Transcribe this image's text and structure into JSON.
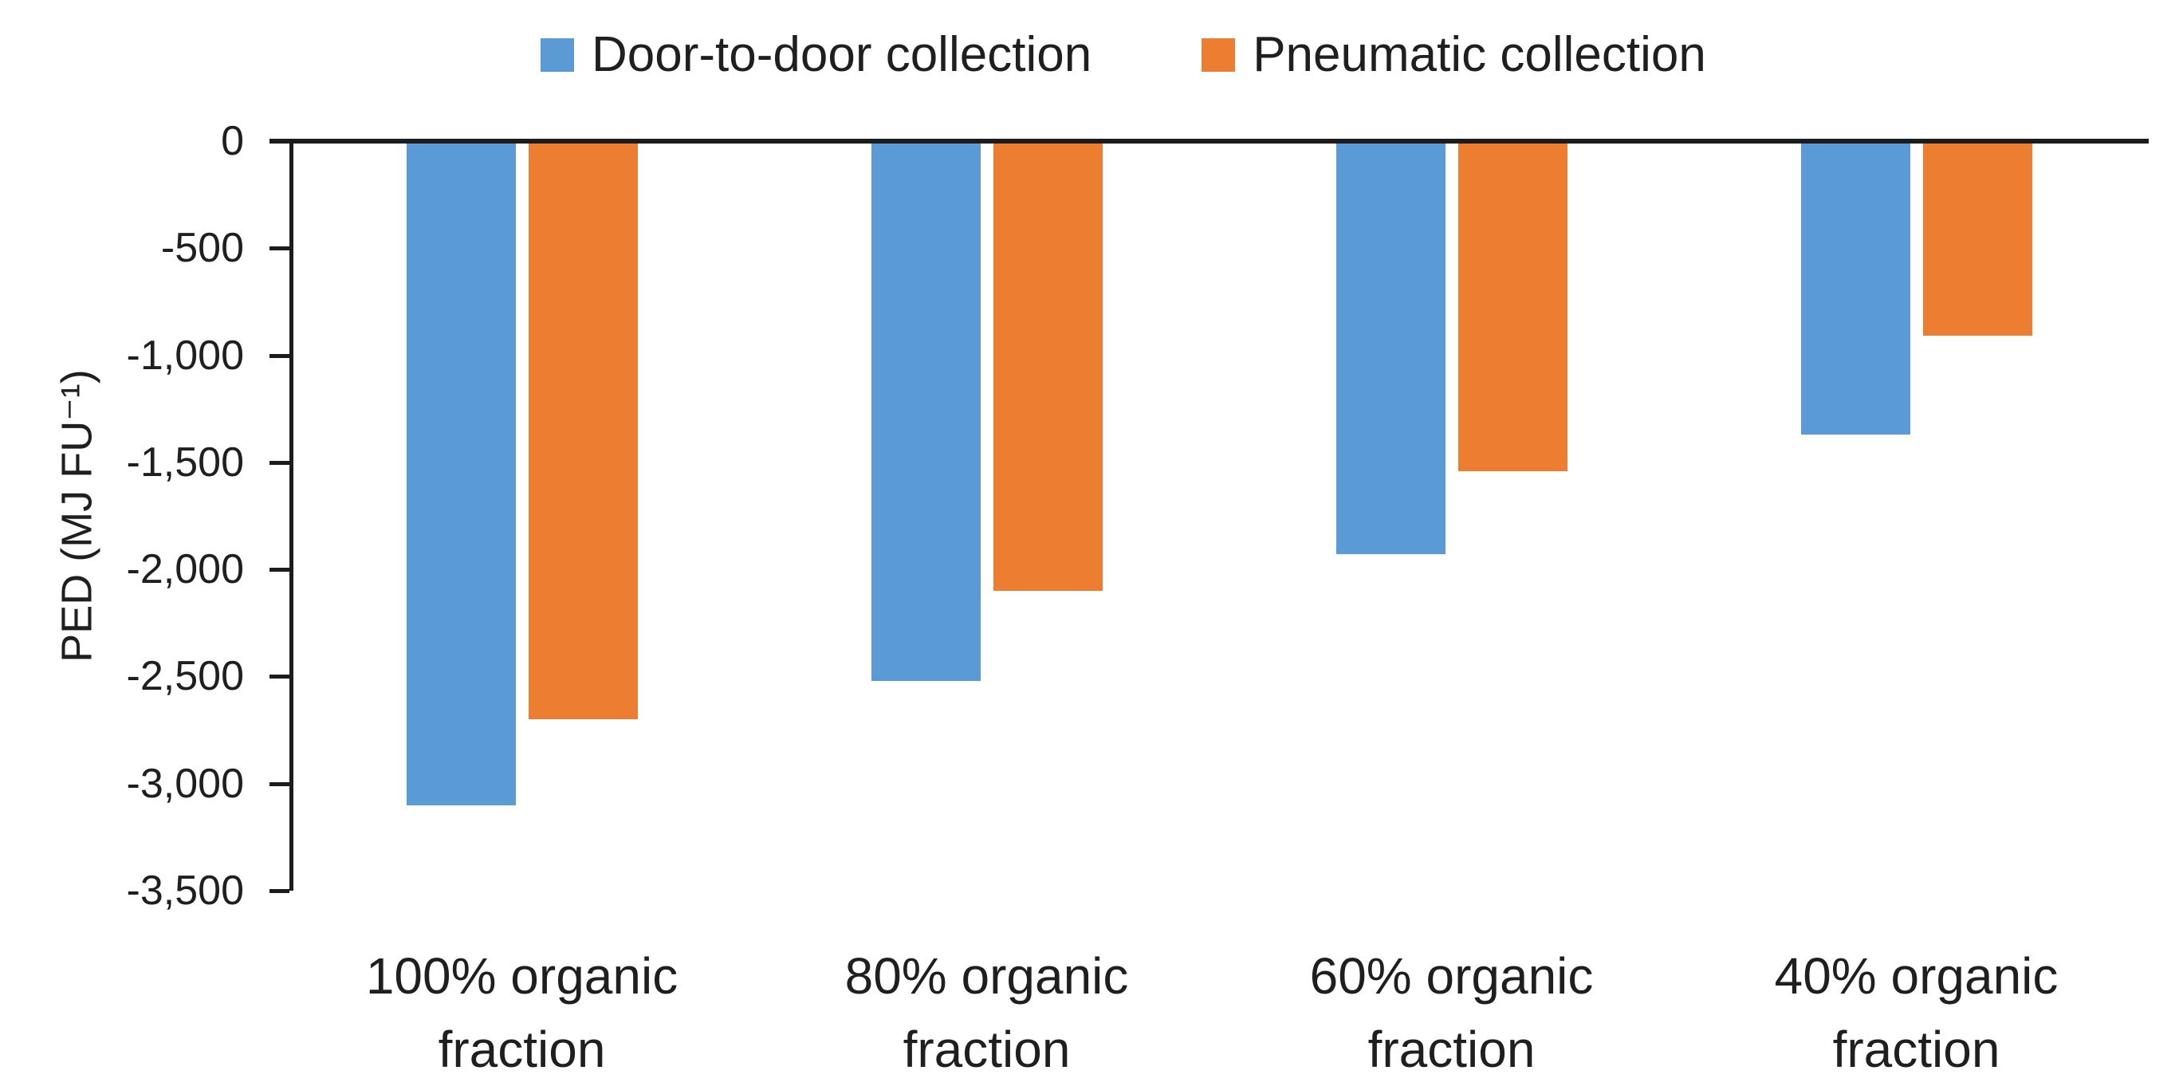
{
  "chart_data": {
    "type": "bar",
    "title": "",
    "categories": [
      "100% organic fraction",
      "80% organic fraction",
      "60% organic fraction",
      "40% organic fraction"
    ],
    "series": [
      {
        "name": "Door-to-door collection",
        "color": "#5B9BD5",
        "values": [
          -3100,
          -2520,
          -1930,
          -1370
        ]
      },
      {
        "name": "Pneumatic collection",
        "color": "#ED7D31",
        "values": [
          -2700,
          -2100,
          -1540,
          -910
        ]
      }
    ],
    "xlabel": "",
    "ylabel": "PED (MJ FU⁻¹)",
    "ylim": [
      -3500,
      0
    ],
    "y_ticks": [
      0,
      -500,
      -1000,
      -1500,
      -2000,
      -2500,
      -3000,
      -3500
    ],
    "y_tick_labels": [
      "0",
      "-500",
      "-1,000",
      "-1,500",
      "-2,000",
      "-2,500",
      "-3,000",
      "-3,500"
    ],
    "grid": false,
    "legend_position": "top-center",
    "axis_color": "#1c1c1c",
    "text_color": "#1f1f1f"
  }
}
